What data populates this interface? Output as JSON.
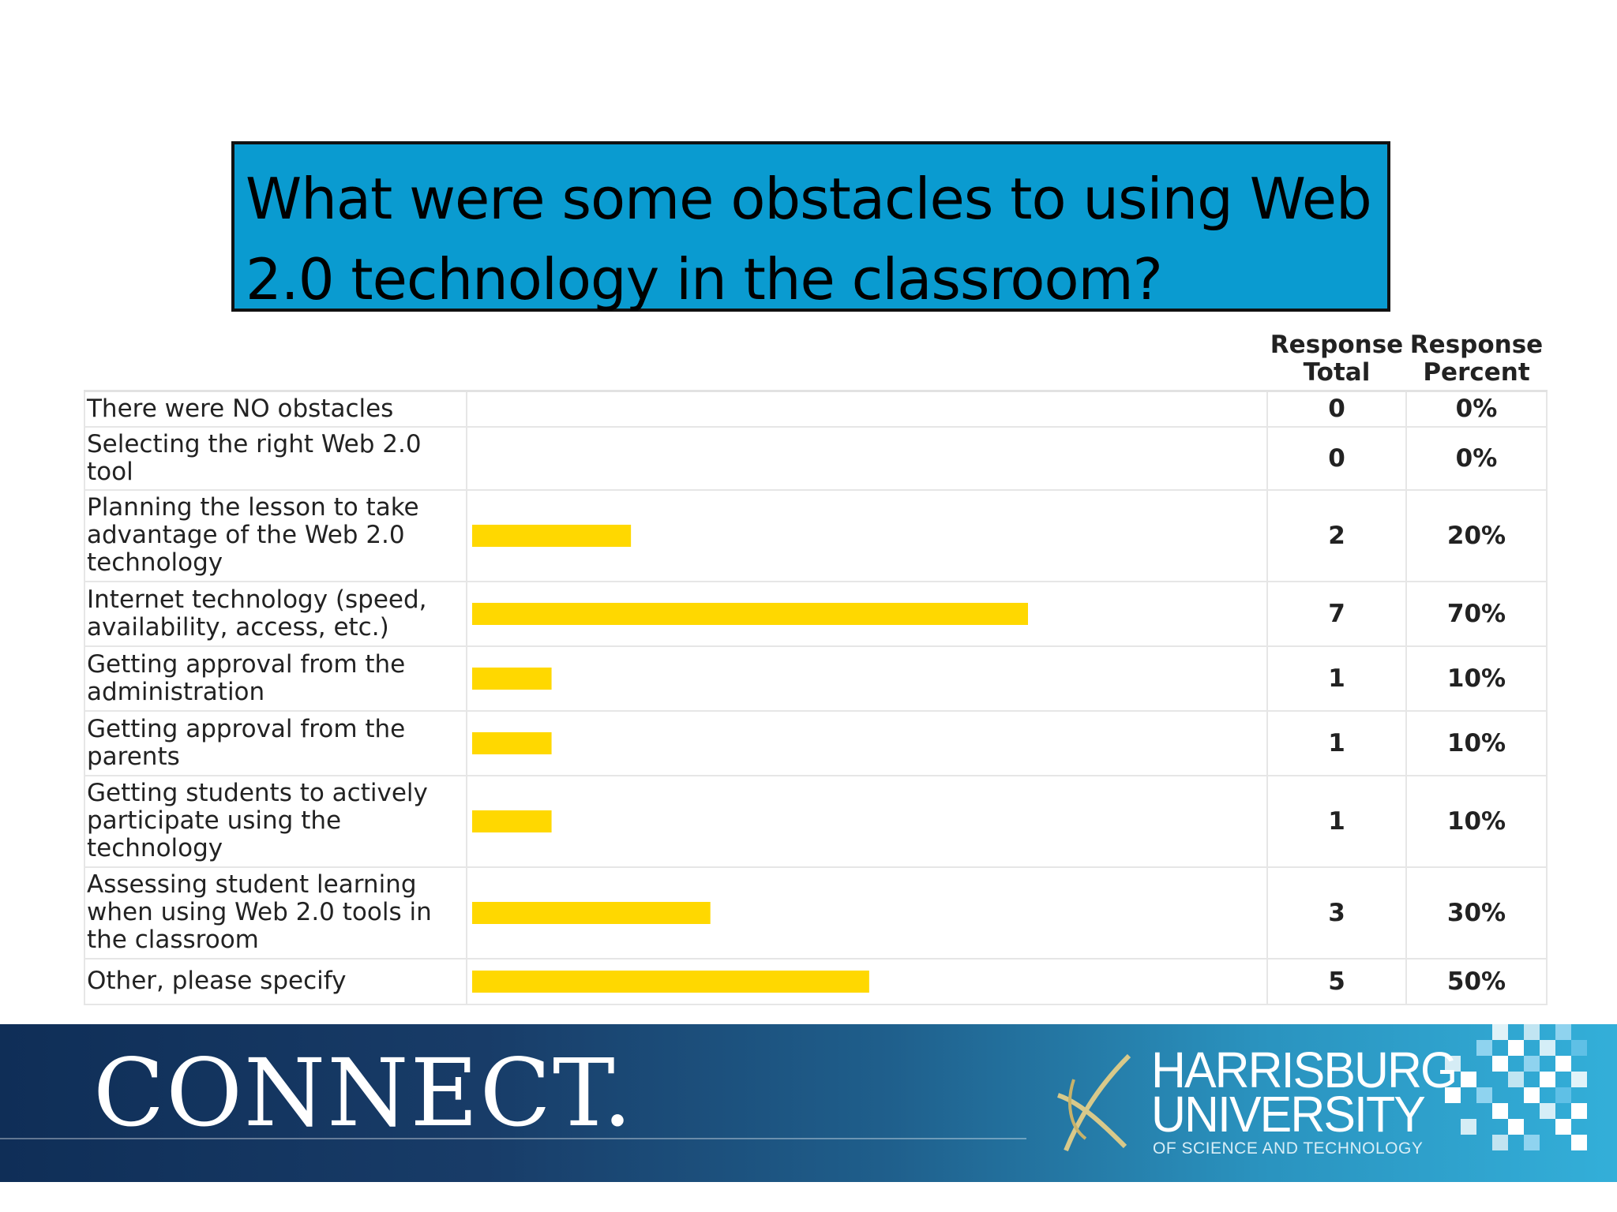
{
  "title": "What were some obstacles to using Web 2.0 technology in the classroom?",
  "table": {
    "headers": {
      "total_line1": "Response",
      "total_line2": "Total",
      "percent_line1": "Response",
      "percent_line2": "Percent"
    }
  },
  "chart_data": {
    "type": "bar",
    "orientation": "horizontal",
    "categories": [
      "There were NO obstacles",
      "Selecting the right Web 2.0 tool",
      "Planning the lesson to take advantage of the Web 2.0 technology",
      "Internet technology (speed, availability, access, etc.)",
      "Getting approval from the administration",
      "Getting approval from the parents",
      "Getting students to actively participate using the technology",
      "Assessing student learning when using Web 2.0 tools in the classroom",
      "Other, please specify"
    ],
    "totals": [
      "0",
      "0",
      "2",
      "7",
      "1",
      "1",
      "1",
      "3",
      "5"
    ],
    "percent_labels": [
      "0%",
      "0%",
      "20%",
      "70%",
      "10%",
      "10%",
      "10%",
      "30%",
      "50%"
    ],
    "values": [
      0,
      0,
      20,
      70,
      10,
      10,
      10,
      30,
      50
    ],
    "xlim": [
      0,
      100
    ],
    "bar_color": "#ffd800"
  },
  "footer": {
    "connect": "CONNECT.",
    "university_line1": "HARRISBURG",
    "university_line2": "UNIVERSITY",
    "university_line3": "OF SCIENCE AND TECHNOLOGY"
  },
  "colors": {
    "title_bg": "#0a9bd0",
    "footer_dark": "#0f2e57",
    "footer_light": "#33afd9"
  }
}
